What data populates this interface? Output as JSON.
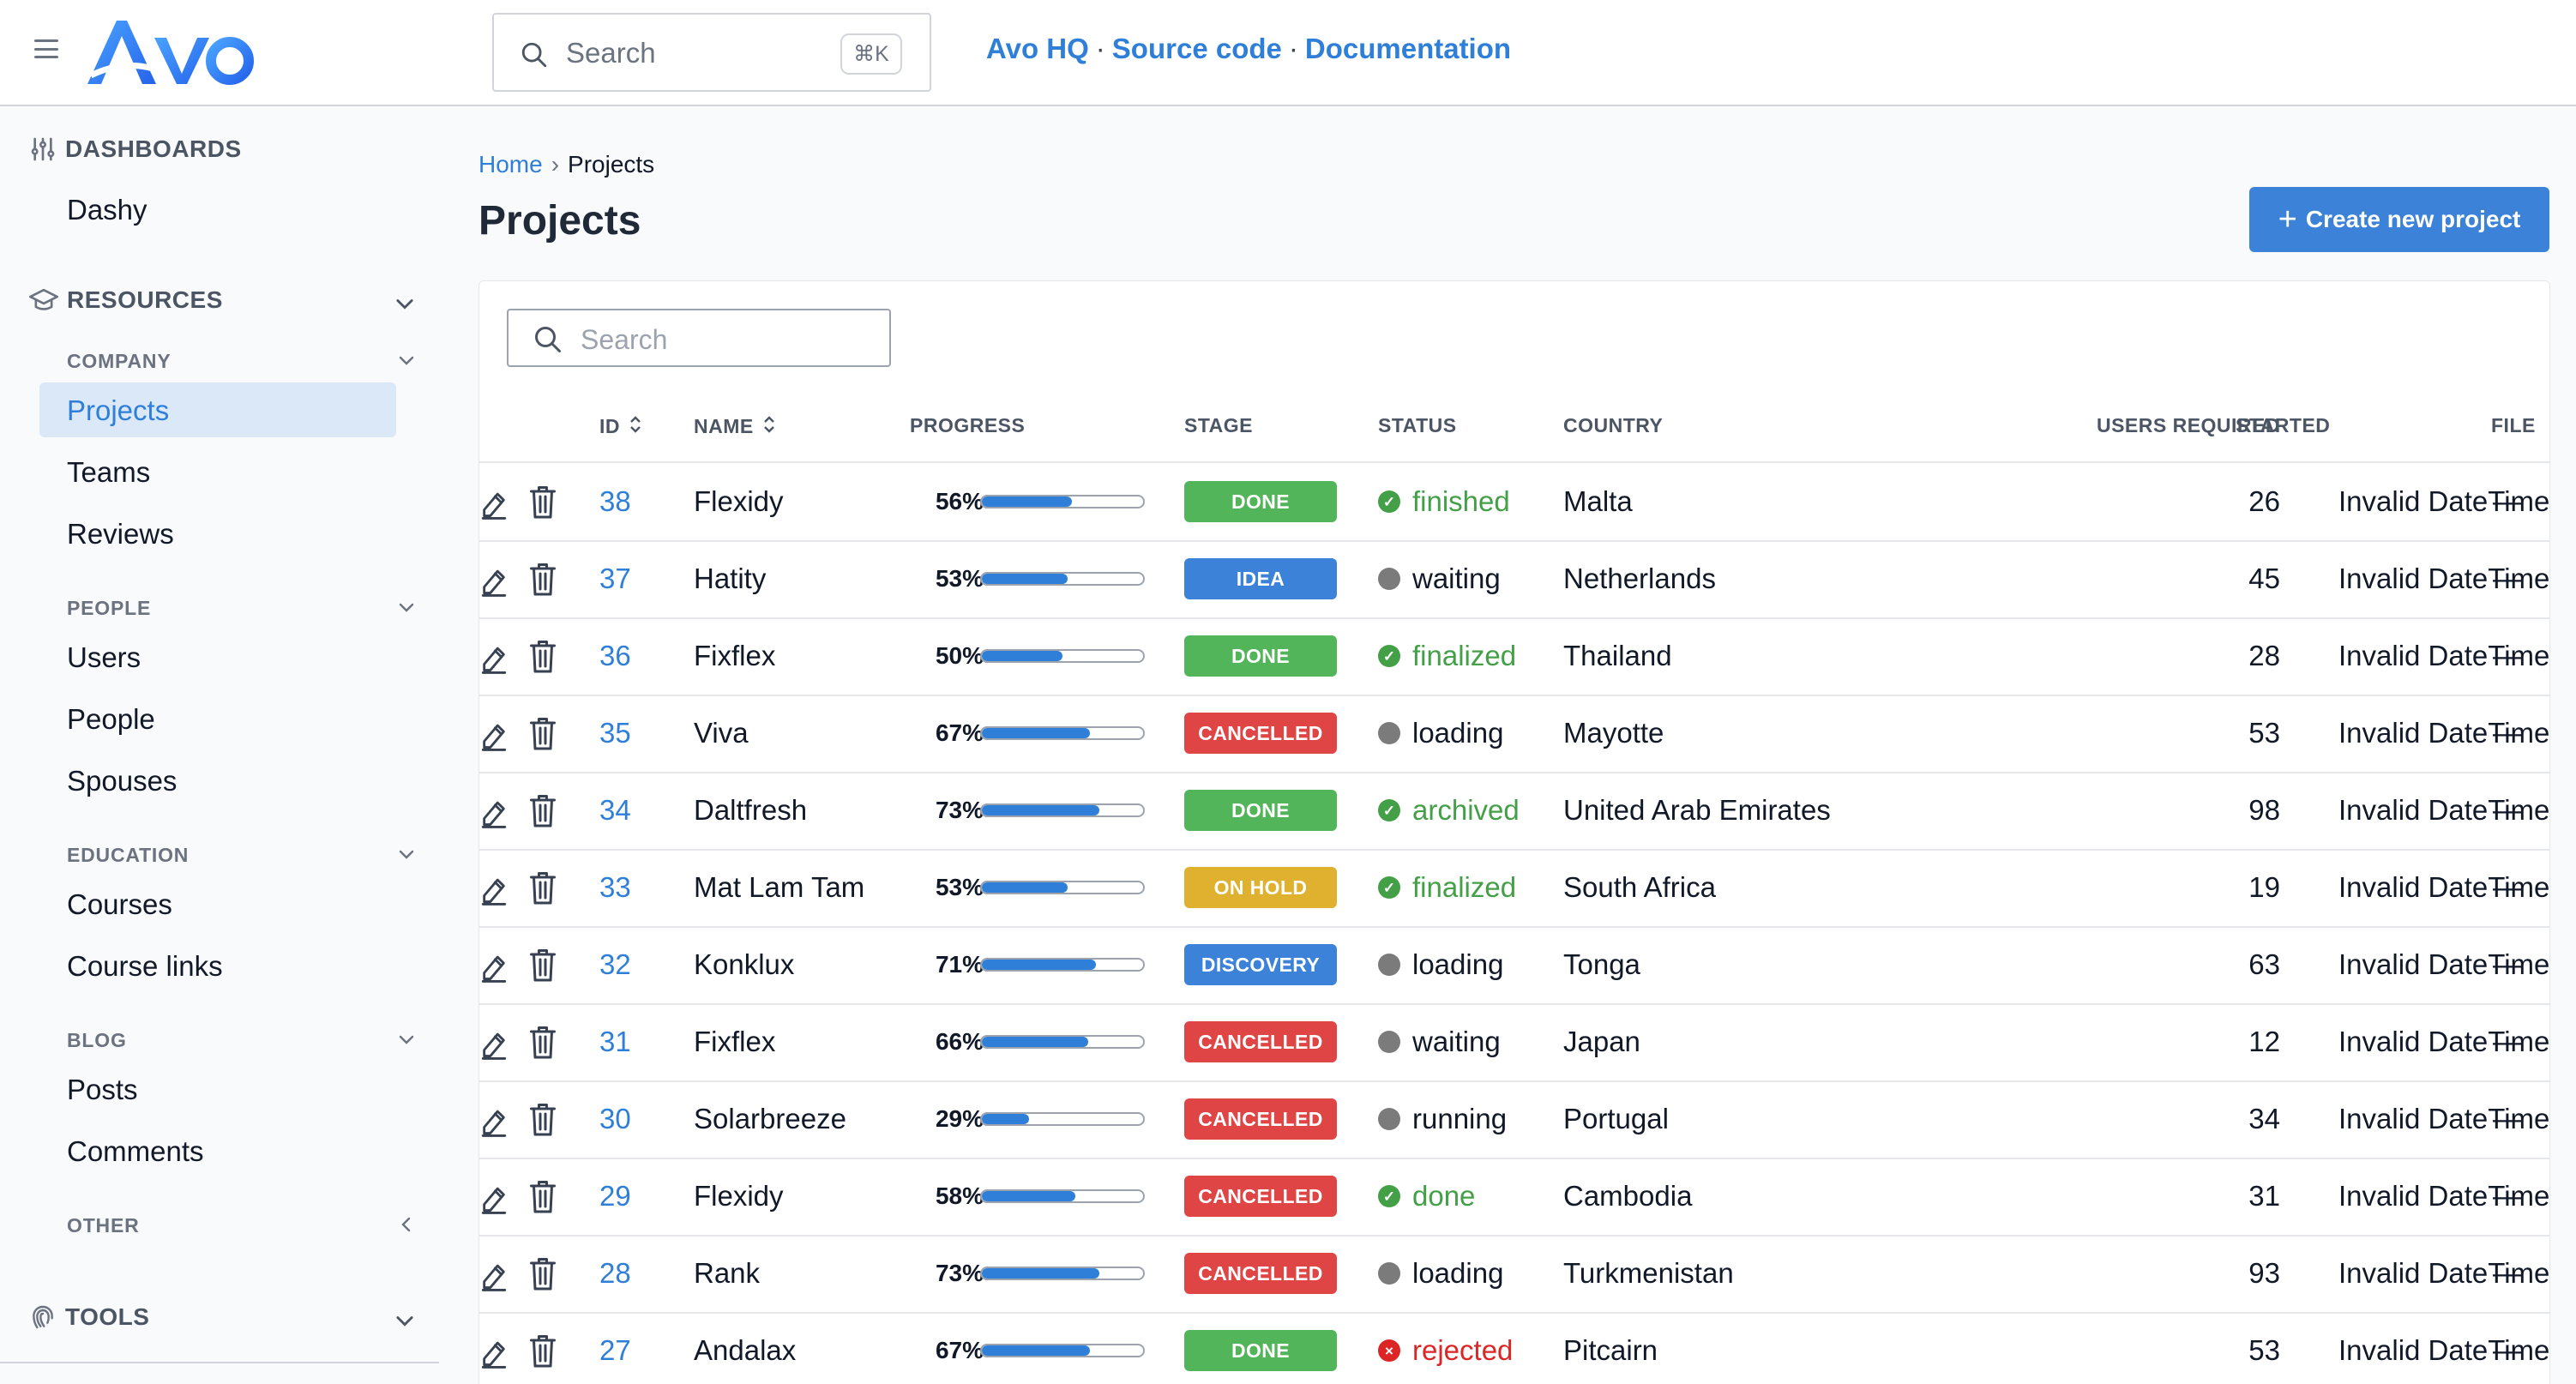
{
  "header": {
    "search_placeholder": "Search",
    "search_shortcut": "⌘K",
    "links": [
      "Avo HQ",
      "Source code",
      "Documentation"
    ],
    "link_separator": "·"
  },
  "sidebar": {
    "dashboards_heading": "DASHBOARDS",
    "dashboards": [
      "Dashy"
    ],
    "resources_heading": "RESOURCES",
    "groups": [
      {
        "label": "COMPANY",
        "items": [
          "Projects",
          "Teams",
          "Reviews"
        ]
      },
      {
        "label": "PEOPLE",
        "items": [
          "Users",
          "People",
          "Spouses"
        ]
      },
      {
        "label": "EDUCATION",
        "items": [
          "Courses",
          "Course links"
        ]
      },
      {
        "label": "BLOG",
        "items": [
          "Posts",
          "Comments"
        ]
      },
      {
        "label": "OTHER",
        "items": []
      }
    ],
    "active_item": "Projects",
    "tools_heading": "TOOLS"
  },
  "breadcrumb": {
    "home": "Home",
    "current": "Projects"
  },
  "page": {
    "title": "Projects",
    "create_button": "Create new project",
    "table_search_placeholder": "Search"
  },
  "table": {
    "columns": {
      "id": "ID",
      "name": "NAME",
      "progress": "PROGRESS",
      "stage": "STAGE",
      "status": "STATUS",
      "country": "COUNTRY",
      "users_required": "USERS REQUIRED",
      "started": "STARTED",
      "file": "FILE"
    },
    "rows": [
      {
        "id": "38",
        "name": "Flexidy",
        "progress": "56%",
        "progress_value": 0.56,
        "stage": "DONE",
        "status": "finished",
        "status_kind": "success",
        "country": "Malta",
        "users_required": "26",
        "started": "Invalid DateTime",
        "file": "—"
      },
      {
        "id": "37",
        "name": "Hatity",
        "progress": "53%",
        "progress_value": 0.53,
        "stage": "IDEA",
        "status": "waiting",
        "status_kind": "neutral",
        "country": "Netherlands",
        "users_required": "45",
        "started": "Invalid DateTime",
        "file": "—"
      },
      {
        "id": "36",
        "name": "Fixflex",
        "progress": "50%",
        "progress_value": 0.5,
        "stage": "DONE",
        "status": "finalized",
        "status_kind": "success",
        "country": "Thailand",
        "users_required": "28",
        "started": "Invalid DateTime",
        "file": "—"
      },
      {
        "id": "35",
        "name": "Viva",
        "progress": "67%",
        "progress_value": 0.67,
        "stage": "CANCELLED",
        "status": "loading",
        "status_kind": "neutral",
        "country": "Mayotte",
        "users_required": "53",
        "started": "Invalid DateTime",
        "file": "—"
      },
      {
        "id": "34",
        "name": "Daltfresh",
        "progress": "73%",
        "progress_value": 0.73,
        "stage": "DONE",
        "status": "archived",
        "status_kind": "success",
        "country": "United Arab Emirates",
        "users_required": "98",
        "started": "Invalid DateTime",
        "file": "—"
      },
      {
        "id": "33",
        "name": "Mat Lam Tam",
        "progress": "53%",
        "progress_value": 0.53,
        "stage": "ON HOLD",
        "status": "finalized",
        "status_kind": "success",
        "country": "South Africa",
        "users_required": "19",
        "started": "Invalid DateTime",
        "file": "—"
      },
      {
        "id": "32",
        "name": "Konklux",
        "progress": "71%",
        "progress_value": 0.71,
        "stage": "DISCOVERY",
        "status": "loading",
        "status_kind": "neutral",
        "country": "Tonga",
        "users_required": "63",
        "started": "Invalid DateTime",
        "file": "—"
      },
      {
        "id": "31",
        "name": "Fixflex",
        "progress": "66%",
        "progress_value": 0.66,
        "stage": "CANCELLED",
        "status": "waiting",
        "status_kind": "neutral",
        "country": "Japan",
        "users_required": "12",
        "started": "Invalid DateTime",
        "file": "—"
      },
      {
        "id": "30",
        "name": "Solarbreeze",
        "progress": "29%",
        "progress_value": 0.29,
        "stage": "CANCELLED",
        "status": "running",
        "status_kind": "neutral",
        "country": "Portugal",
        "users_required": "34",
        "started": "Invalid DateTime",
        "file": "—"
      },
      {
        "id": "29",
        "name": "Flexidy",
        "progress": "58%",
        "progress_value": 0.58,
        "stage": "CANCELLED",
        "status": "done",
        "status_kind": "success",
        "country": "Cambodia",
        "users_required": "31",
        "started": "Invalid DateTime",
        "file": "—"
      },
      {
        "id": "28",
        "name": "Rank",
        "progress": "73%",
        "progress_value": 0.73,
        "stage": "CANCELLED",
        "status": "loading",
        "status_kind": "neutral",
        "country": "Turkmenistan",
        "users_required": "93",
        "started": "Invalid DateTime",
        "file": "—"
      },
      {
        "id": "27",
        "name": "Andalax",
        "progress": "67%",
        "progress_value": 0.67,
        "stage": "DONE",
        "status": "rejected",
        "status_kind": "error",
        "country": "Pitcairn",
        "users_required": "53",
        "started": "Invalid DateTime",
        "file": "—"
      }
    ]
  },
  "colors": {
    "accent": "#2f7fd9",
    "stage_done": "#53b55a",
    "stage_idea": "#3b82d8",
    "stage_cancelled": "#e04545",
    "stage_on_hold": "#e0b12e",
    "stage_discovery": "#3b82d8",
    "status_success": "#43a047",
    "status_neutral": "#111827",
    "status_error": "#dc2626",
    "dot_neutral": "#7b7b7b"
  },
  "icons": [
    "menu-icon",
    "avo-logo",
    "search-icon",
    "dashboards-icon",
    "resources-icon",
    "tools-icon",
    "chevron-down-icon",
    "chevron-left-icon",
    "sort-icon",
    "edit-icon",
    "trash-icon",
    "check-icon",
    "x-icon",
    "plus-icon"
  ]
}
